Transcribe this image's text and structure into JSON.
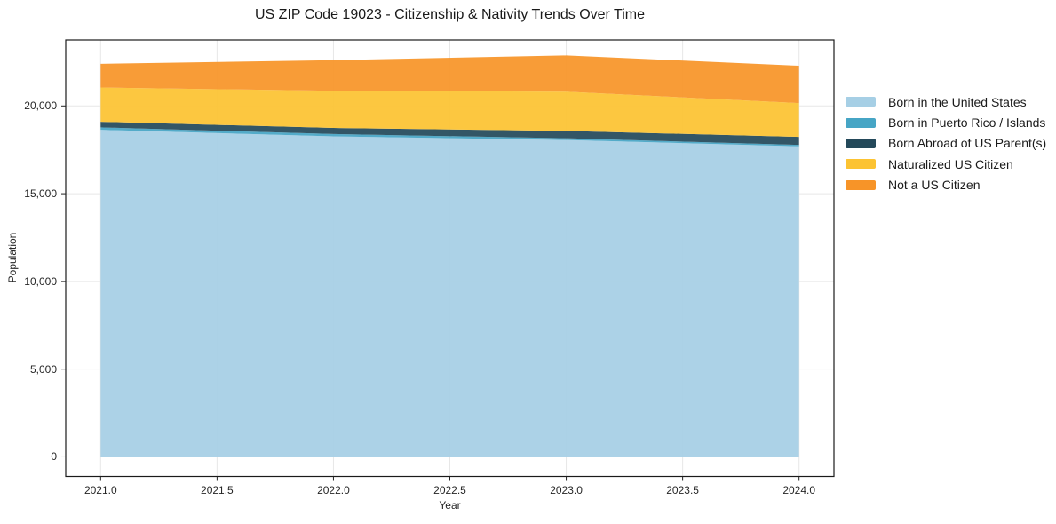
{
  "chart": {
    "title": "US ZIP Code 19023 - Citizenship & Nativity Trends Over Time",
    "xlabel": "Year",
    "ylabel": "Population"
  },
  "chart_data": {
    "type": "area",
    "stacked": true,
    "title": "US ZIP Code 19023 - Citizenship & Nativity Trends Over Time",
    "xlabel": "Year",
    "ylabel": "Population",
    "x": [
      2021,
      2022,
      2023,
      2024
    ],
    "series": [
      {
        "name": "Born in the United States",
        "color": "#a6cfe5",
        "values": [
          18640,
          18270,
          18060,
          17700
        ]
      },
      {
        "name": "Born in Puerto Rico / Islands",
        "color": "#46a5c5",
        "values": [
          140,
          130,
          100,
          80
        ]
      },
      {
        "name": "Born Abroad of US Parent(s)",
        "color": "#24495a",
        "values": [
          320,
          350,
          420,
          460
        ]
      },
      {
        "name": "Naturalized US Citizen",
        "color": "#fcc332",
        "values": [
          1950,
          2110,
          2230,
          1920
        ]
      },
      {
        "name": "Not a US Citizen",
        "color": "#f79428",
        "values": [
          1350,
          1750,
          2070,
          2130
        ]
      }
    ],
    "stacked_totals": [
      22400,
      22610,
      22880,
      22290
    ],
    "xticks": [
      2021.0,
      2021.5,
      2022.0,
      2022.5,
      2023.0,
      2023.5,
      2024.0
    ],
    "xtick_labels": [
      "2021.0",
      "2021.5",
      "2022.0",
      "2022.5",
      "2023.0",
      "2023.5",
      "2024.0"
    ],
    "yticks": [
      0,
      5000,
      10000,
      15000,
      20000
    ],
    "ytick_labels": [
      "0",
      "5,000",
      "10,000",
      "15,000",
      "20,000"
    ],
    "xlim": [
      2020.85,
      2024.15
    ],
    "ylim": [
      -1115,
      23760
    ],
    "grid": true,
    "grid_color": "#e7e7e7",
    "spine_color": "#1a1a1a",
    "fill_opacity": 0.93,
    "legend_position": "right"
  }
}
